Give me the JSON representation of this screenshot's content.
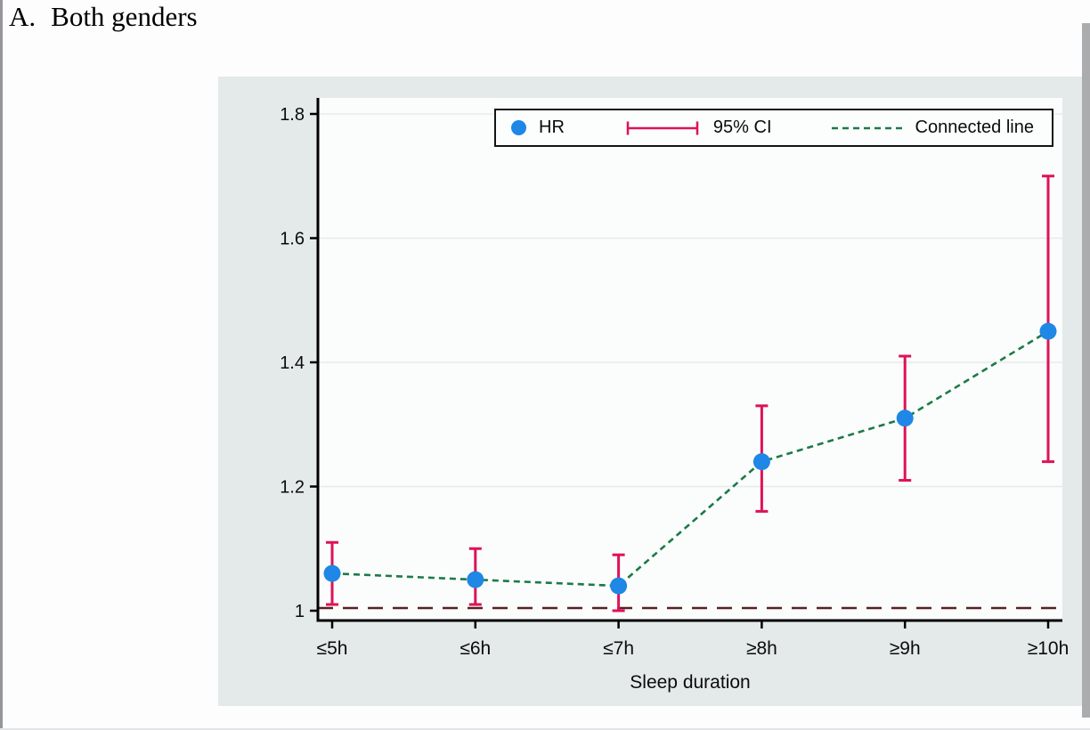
{
  "page": {
    "panel_label": "A.",
    "panel_title": "Both genders"
  },
  "chart_data": {
    "type": "scatter",
    "title": "A. Both genders",
    "categories": [
      "≤5h",
      "≤6h",
      "≤7h",
      "≥8h",
      "≥9h",
      "≥10h"
    ],
    "series": [
      {
        "name": "HR",
        "values": [
          1.06,
          1.05,
          1.04,
          1.24,
          1.31,
          1.45
        ],
        "ci_low": [
          1.01,
          1.01,
          1.0,
          1.16,
          1.21,
          1.24
        ],
        "ci_high": [
          1.11,
          1.1,
          1.09,
          1.33,
          1.41,
          1.7
        ]
      }
    ],
    "xlabel": "Sleep duration",
    "ylabel": "",
    "yticks": [
      1,
      1.2,
      1.4,
      1.6,
      1.8
    ],
    "ytick_labels": [
      "1",
      "1.2",
      "1.4",
      "1.6",
      "1.8"
    ],
    "ylim": [
      0.98,
      1.82
    ],
    "reference_line": 1.0,
    "grid": "horizontal",
    "legend": [
      "HR",
      "95% CI",
      "Connected line"
    ],
    "legend_position": "top-center"
  },
  "style": {
    "marker_color": "#1f87e6",
    "ci_color": "#df1257",
    "line_color": "#1c7a47",
    "reference_color": "#58211e",
    "card_bg": "#e3eae9",
    "plot_bg": "#fbfcfc",
    "grid_color": "#e7ebea",
    "axis_color": "#000000"
  }
}
